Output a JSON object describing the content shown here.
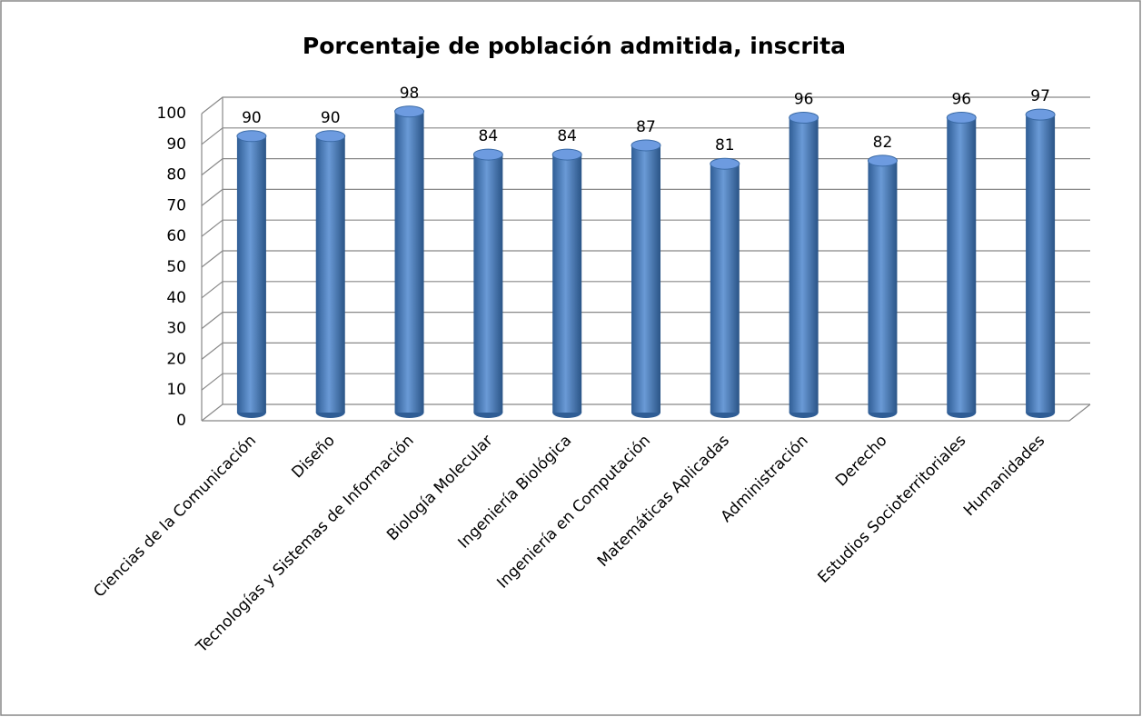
{
  "chart_data": {
    "type": "bar",
    "title": "Porcentaje de población admitida, inscrita",
    "categories": [
      "Ciencias de la Comunicación",
      "Diseño",
      "Tecnologías y Sistemas de Información",
      "Biología Molecular",
      "Ingeniería Biológica",
      "Ingeniería en Computación",
      "Matemáticas Aplicadas",
      "Administración",
      "Derecho",
      "Estudios Socioterritoriales",
      "Humanidades"
    ],
    "values": [
      90,
      90,
      98,
      84,
      84,
      87,
      81,
      96,
      82,
      96,
      97
    ],
    "color": "#4a7ebb",
    "ylim": [
      0,
      100
    ],
    "yticks": [
      0,
      10,
      20,
      30,
      40,
      50,
      60,
      70,
      80,
      90,
      100
    ],
    "grid": true
  }
}
